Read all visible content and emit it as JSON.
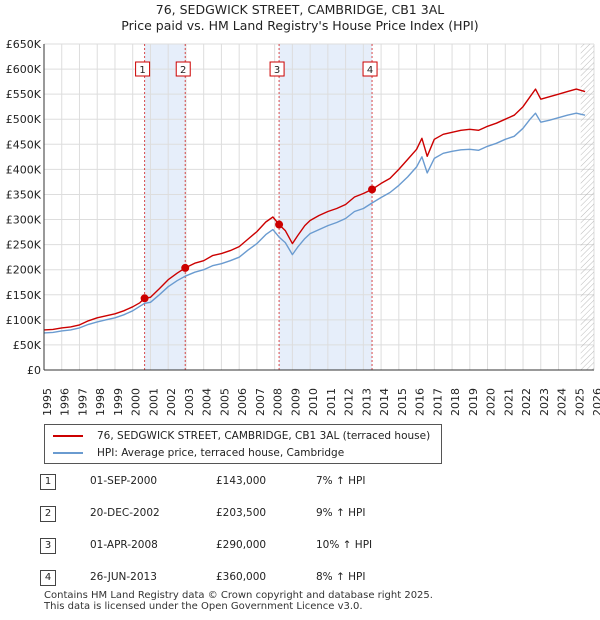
{
  "title_line1": "76, SEDGWICK STREET, CAMBRIDGE, CB1 3AL",
  "title_line2": "Price paid vs. HM Land Registry's House Price Index (HPI)",
  "chart_data": {
    "type": "line",
    "xlim": [
      1995,
      2026
    ],
    "ylim": [
      0,
      650000
    ],
    "y_ticks": [
      {
        "value": 0,
        "label": "£0"
      },
      {
        "value": 50000,
        "label": "£50K"
      },
      {
        "value": 100000,
        "label": "£100K"
      },
      {
        "value": 150000,
        "label": "£150K"
      },
      {
        "value": 200000,
        "label": "£200K"
      },
      {
        "value": 250000,
        "label": "£250K"
      },
      {
        "value": 300000,
        "label": "£300K"
      },
      {
        "value": 350000,
        "label": "£350K"
      },
      {
        "value": 400000,
        "label": "£400K"
      },
      {
        "value": 450000,
        "label": "£450K"
      },
      {
        "value": 500000,
        "label": "£500K"
      },
      {
        "value": 550000,
        "label": "£550K"
      },
      {
        "value": 600000,
        "label": "£600K"
      },
      {
        "value": 650000,
        "label": "£650K"
      }
    ],
    "x_ticks": [
      "1995",
      "1996",
      "1997",
      "1998",
      "1999",
      "2000",
      "2001",
      "2002",
      "2003",
      "2004",
      "2005",
      "2006",
      "2007",
      "2008",
      "2009",
      "2010",
      "2011",
      "2012",
      "2013",
      "2014",
      "2015",
      "2016",
      "2017",
      "2018",
      "2019",
      "2020",
      "2021",
      "2022",
      "2023",
      "2024",
      "2025",
      "2026"
    ],
    "grid": true,
    "series": [
      {
        "name": "76, SEDGWICK STREET, CAMBRIDGE, CB1 3AL (terraced house)",
        "color": "#cc0000",
        "x": [
          1995.0,
          1995.5,
          1996.0,
          1996.5,
          1997.0,
          1997.5,
          1998.0,
          1998.5,
          1999.0,
          1999.5,
          2000.0,
          2000.4,
          2000.67,
          2001.0,
          2001.5,
          2002.0,
          2002.5,
          2002.96,
          2003.5,
          2004.0,
          2004.5,
          2005.0,
          2005.5,
          2006.0,
          2006.5,
          2007.0,
          2007.5,
          2007.9,
          2008.25,
          2008.6,
          2009.0,
          2009.3,
          2009.7,
          2010.0,
          2010.5,
          2011.0,
          2011.5,
          2012.0,
          2012.5,
          2013.0,
          2013.49,
          2014.0,
          2014.5,
          2015.0,
          2015.5,
          2016.0,
          2016.3,
          2016.6,
          2017.0,
          2017.5,
          2018.0,
          2018.5,
          2019.0,
          2019.5,
          2020.0,
          2020.5,
          2021.0,
          2021.5,
          2022.0,
          2022.4,
          2022.7,
          2023.0,
          2023.5,
          2024.0,
          2024.5,
          2025.0,
          2025.5
        ],
        "y": [
          80000,
          81000,
          84000,
          86000,
          90000,
          98000,
          104000,
          108000,
          112000,
          118000,
          126000,
          134000,
          143000,
          145000,
          162000,
          180000,
          193000,
          203500,
          213000,
          218000,
          228000,
          232000,
          238000,
          246000,
          261000,
          276000,
          295000,
          305000,
          290000,
          278000,
          252000,
          268000,
          288000,
          298000,
          308000,
          316000,
          322000,
          330000,
          345000,
          352000,
          360000,
          372000,
          382000,
          400000,
          420000,
          440000,
          462000,
          426000,
          460000,
          470000,
          474000,
          478000,
          480000,
          478000,
          486000,
          492000,
          500000,
          508000,
          525000,
          545000,
          560000,
          540000,
          545000,
          550000,
          555000,
          560000,
          555000
        ]
      },
      {
        "name": "HPI: Average price, terraced house, Cambridge",
        "color": "#6a9bd0",
        "x": [
          1995.0,
          1995.5,
          1996.0,
          1996.5,
          1997.0,
          1997.5,
          1998.0,
          1998.5,
          1999.0,
          1999.5,
          2000.0,
          2000.4,
          2000.67,
          2001.0,
          2001.5,
          2002.0,
          2002.5,
          2002.96,
          2003.5,
          2004.0,
          2004.5,
          2005.0,
          2005.5,
          2006.0,
          2006.5,
          2007.0,
          2007.5,
          2007.9,
          2008.25,
          2008.6,
          2009.0,
          2009.3,
          2009.7,
          2010.0,
          2010.5,
          2011.0,
          2011.5,
          2012.0,
          2012.5,
          2013.0,
          2013.49,
          2014.0,
          2014.5,
          2015.0,
          2015.5,
          2016.0,
          2016.3,
          2016.6,
          2017.0,
          2017.5,
          2018.0,
          2018.5,
          2019.0,
          2019.5,
          2020.0,
          2020.5,
          2021.0,
          2021.5,
          2022.0,
          2022.4,
          2022.7,
          2023.0,
          2023.5,
          2024.0,
          2024.5,
          2025.0,
          2025.5
        ],
        "y": [
          74000,
          75000,
          78000,
          80000,
          84000,
          91000,
          96000,
          100000,
          104000,
          110000,
          118000,
          127000,
          133000,
          135000,
          150000,
          166000,
          178000,
          187000,
          195000,
          200000,
          208000,
          212000,
          218000,
          225000,
          239000,
          252000,
          270000,
          280000,
          265000,
          254000,
          230000,
          245000,
          262000,
          272000,
          280000,
          288000,
          294000,
          302000,
          316000,
          322000,
          333000,
          344000,
          354000,
          368000,
          385000,
          405000,
          425000,
          393000,
          422000,
          432000,
          436000,
          439000,
          440000,
          438000,
          446000,
          452000,
          460000,
          466000,
          482000,
          500000,
          512000,
          494000,
          498000,
          503000,
          508000,
          512000,
          508000
        ]
      }
    ],
    "sale_markers": [
      {
        "label": "1",
        "x": 2000.67,
        "y": 143000
      },
      {
        "label": "2",
        "x": 2002.96,
        "y": 203500
      },
      {
        "label": "3",
        "x": 2008.25,
        "y": 290000
      },
      {
        "label": "4",
        "x": 2013.49,
        "y": 360000
      }
    ],
    "shaded_periods": [
      [
        2000.67,
        2002.96
      ],
      [
        2008.25,
        2013.49
      ]
    ],
    "forecast_start": 2025.25
  },
  "legend": {
    "property_label": "76, SEDGWICK STREET, CAMBRIDGE, CB1 3AL (terraced house)",
    "hpi_label": "HPI: Average price, terraced house, Cambridge",
    "property_color": "#cc0000",
    "hpi_color": "#6a9bd0"
  },
  "transactions": [
    {
      "num": "1",
      "date": "01-SEP-2000",
      "price": "£143,000",
      "hpi": "7% ↑ HPI"
    },
    {
      "num": "2",
      "date": "20-DEC-2002",
      "price": "£203,500",
      "hpi": "9% ↑ HPI"
    },
    {
      "num": "3",
      "date": "01-APR-2008",
      "price": "£290,000",
      "hpi": "10% ↑ HPI"
    },
    {
      "num": "4",
      "date": "26-JUN-2013",
      "price": "£360,000",
      "hpi": "8% ↑ HPI"
    }
  ],
  "footer_line1": "Contains HM Land Registry data © Crown copyright and database right 2025.",
  "footer_line2": "This data is licensed under the Open Government Licence v3.0."
}
